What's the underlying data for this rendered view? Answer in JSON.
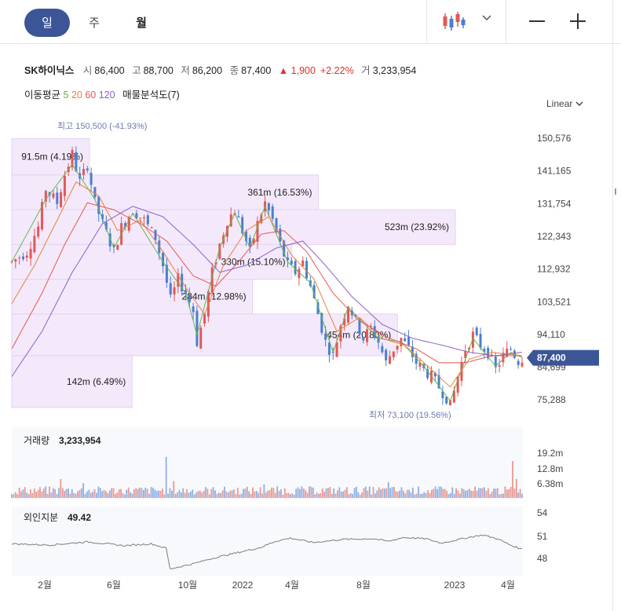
{
  "tabs": [
    {
      "label": "일",
      "active": true
    },
    {
      "label": "주",
      "active": false
    },
    {
      "label": "월",
      "active": false
    }
  ],
  "stock": {
    "name": "SK하이닉스",
    "open_label": "시",
    "open": "86,400",
    "high_label": "고",
    "high": "88,700",
    "low_label": "저",
    "low": "86,200",
    "close_label": "종",
    "close": "87,400",
    "change": "▲ 1,900",
    "change_pct": "+2.22%",
    "volume_label": "거",
    "volume": "3,233,954"
  },
  "ma_legend": {
    "label": "이동평균",
    "p5": "5",
    "p20": "20",
    "p60": "60",
    "p120": "120",
    "vp_label": "매물분석도(7)"
  },
  "scale_mode": "Linear",
  "colors": {
    "up": "#e45757",
    "down": "#4a7fd0",
    "ma5": "#64b54e",
    "ma20": "#e8803b",
    "ma60": "#e45757",
    "ma120": "#8b5fc7",
    "accent": "#3c5597",
    "vp": "#f3e9fb"
  },
  "chart_data": [
    {
      "type": "candlestick",
      "title": "",
      "price_axis_ticks": [
        150576,
        141165,
        131754,
        122343,
        112932,
        103521,
        94110,
        84699,
        75288
      ],
      "ylim": [
        71500,
        156000
      ],
      "x_tick_labels": [
        "2월",
        "6월",
        "10월",
        "2022",
        "4월",
        "8월",
        "2023",
        "4월"
      ],
      "current_price_label": "87,400",
      "high_annotation": "최고 150,500 (-41.93%)",
      "low_annotation": "최저 73,100 (19.56%)",
      "price_path": [
        [
          0,
          115000
        ],
        [
          4,
          118000
        ],
        [
          7,
          125000
        ],
        [
          9,
          136000
        ],
        [
          12,
          132000
        ],
        [
          14,
          140000
        ],
        [
          16,
          146000
        ],
        [
          18,
          138000
        ],
        [
          20,
          143000
        ],
        [
          22,
          132000
        ],
        [
          24,
          126000
        ],
        [
          27,
          118000
        ],
        [
          29,
          125000
        ],
        [
          32,
          130000
        ],
        [
          35,
          127000
        ],
        [
          38,
          122000
        ],
        [
          40,
          114000
        ],
        [
          42,
          104000
        ],
        [
          44,
          110000
        ],
        [
          46,
          106000
        ],
        [
          48,
          101000
        ],
        [
          49,
          92000
        ],
        [
          51,
          100000
        ],
        [
          53,
          112000
        ],
        [
          55,
          120000
        ],
        [
          57,
          127000
        ],
        [
          59,
          130000
        ],
        [
          61,
          124000
        ],
        [
          63,
          118000
        ],
        [
          65,
          126000
        ],
        [
          67,
          132000
        ],
        [
          69,
          127000
        ],
        [
          71,
          120000
        ],
        [
          73,
          114000
        ],
        [
          75,
          112000
        ],
        [
          77,
          115000
        ],
        [
          79,
          108000
        ],
        [
          81,
          100000
        ],
        [
          83,
          92000
        ],
        [
          85,
          88000
        ],
        [
          87,
          97000
        ],
        [
          89,
          103000
        ],
        [
          91,
          98000
        ],
        [
          93,
          93000
        ],
        [
          95,
          96000
        ],
        [
          97,
          92000
        ],
        [
          99,
          86000
        ],
        [
          101,
          90000
        ],
        [
          103,
          93000
        ],
        [
          105,
          90000
        ],
        [
          107,
          86000
        ],
        [
          109,
          84000
        ],
        [
          111,
          82000
        ],
        [
          113,
          79000
        ],
        [
          115,
          76000
        ],
        [
          116,
          73500
        ],
        [
          118,
          82000
        ],
        [
          120,
          90000
        ],
        [
          122,
          94000
        ],
        [
          124,
          91000
        ],
        [
          126,
          89000
        ],
        [
          128,
          84000
        ],
        [
          130,
          88000
        ],
        [
          132,
          90000
        ],
        [
          134,
          86500
        ],
        [
          135,
          87400
        ]
      ],
      "ma_series": [
        {
          "name": "5",
          "path": [
            [
              0,
              115000
            ],
            [
              9,
              133000
            ],
            [
              16,
              143000
            ],
            [
              22,
              133000
            ],
            [
              27,
              119000
            ],
            [
              32,
              129000
            ],
            [
              40,
              115000
            ],
            [
              46,
              106000
            ],
            [
              49,
              94000
            ],
            [
              55,
              119000
            ],
            [
              59,
              129000
            ],
            [
              63,
              119000
            ],
            [
              67,
              131000
            ],
            [
              73,
              115000
            ],
            [
              79,
              109000
            ],
            [
              85,
              89000
            ],
            [
              89,
              102000
            ],
            [
              97,
              93000
            ],
            [
              103,
              92000
            ],
            [
              109,
              85000
            ],
            [
              116,
              75000
            ],
            [
              122,
              93000
            ],
            [
              128,
              85000
            ],
            [
              132,
              89000
            ],
            [
              135,
              87500
            ]
          ]
        },
        {
          "name": "20",
          "path": [
            [
              0,
              103000
            ],
            [
              6,
              114000
            ],
            [
              12,
              127000
            ],
            [
              17,
              138000
            ],
            [
              23,
              134000
            ],
            [
              28,
              124000
            ],
            [
              34,
              127000
            ],
            [
              40,
              118000
            ],
            [
              47,
              106000
            ],
            [
              51,
              100000
            ],
            [
              56,
              114000
            ],
            [
              62,
              124000
            ],
            [
              68,
              128000
            ],
            [
              74,
              117000
            ],
            [
              80,
              110000
            ],
            [
              86,
              95000
            ],
            [
              92,
              99000
            ],
            [
              98,
              93000
            ],
            [
              104,
              91000
            ],
            [
              110,
              85000
            ],
            [
              116,
              79000
            ],
            [
              121,
              87000
            ],
            [
              127,
              89000
            ],
            [
              135,
              88000
            ]
          ]
        },
        {
          "name": "60",
          "path": [
            [
              0,
              90000
            ],
            [
              8,
              106000
            ],
            [
              14,
              120000
            ],
            [
              20,
              132000
            ],
            [
              27,
              130000
            ],
            [
              34,
              126000
            ],
            [
              41,
              121000
            ],
            [
              48,
              111000
            ],
            [
              54,
              108000
            ],
            [
              60,
              115000
            ],
            [
              66,
              123000
            ],
            [
              72,
              124000
            ],
            [
              78,
              118000
            ],
            [
              85,
              106000
            ],
            [
              92,
              98000
            ],
            [
              100,
              93000
            ],
            [
              107,
              90000
            ],
            [
              113,
              86000
            ],
            [
              120,
              86000
            ],
            [
              127,
              88000
            ],
            [
              135,
              88000
            ]
          ]
        },
        {
          "name": "120",
          "path": [
            [
              0,
              82000
            ],
            [
              8,
              95000
            ],
            [
              16,
              112000
            ],
            [
              24,
              126000
            ],
            [
              32,
              131000
            ],
            [
              40,
              128000
            ],
            [
              48,
              120000
            ],
            [
              55,
              112000
            ],
            [
              62,
              114000
            ],
            [
              70,
              119000
            ],
            [
              77,
              121000
            ],
            [
              83,
              114000
            ],
            [
              90,
              105000
            ],
            [
              98,
              97000
            ],
            [
              106,
              93000
            ],
            [
              114,
              91000
            ],
            [
              121,
              89000
            ],
            [
              128,
              88000
            ],
            [
              135,
              89000
            ]
          ]
        }
      ],
      "volume_profile": [
        {
          "label": "91.5m (4.19%)",
          "price_range": [
            140000,
            150500
          ],
          "pct": 4.19
        },
        {
          "label": "361m (16.53%)",
          "price_range": [
            130000,
            140000
          ],
          "pct": 16.53
        },
        {
          "label": "523m (23.92%)",
          "price_range": [
            120000,
            130000
          ],
          "pct": 23.92
        },
        {
          "label": "330m (15.10%)",
          "price_range": [
            110000,
            120000
          ],
          "pct": 15.1
        },
        {
          "label": "284m (12.98%)",
          "price_range": [
            100000,
            110000
          ],
          "pct": 12.98
        },
        {
          "label": "454m (20.80%)",
          "price_range": [
            88000,
            100000
          ],
          "pct": 20.8
        },
        {
          "label": "142m (6.49%)",
          "price_range": [
            73100,
            88000
          ],
          "pct": 6.49
        }
      ]
    },
    {
      "type": "bar",
      "title": "거래량",
      "value_label": "3,233,954",
      "y_tick_labels": [
        "19.2m",
        "12.8m",
        "6.38m"
      ],
      "ylim": [
        0,
        22000000
      ],
      "spikes": [
        [
          13,
          9000000
        ],
        [
          19,
          7000000
        ],
        [
          41,
          19500000
        ],
        [
          43,
          8000000
        ],
        [
          67,
          6500000
        ],
        [
          100,
          7500000
        ],
        [
          133,
          17500000
        ],
        [
          134,
          9000000
        ]
      ],
      "baseline_range": [
        1500000,
        5500000
      ]
    },
    {
      "type": "line",
      "title": "외인지분",
      "value_label": "49.42",
      "y_tick_labels": [
        "54",
        "51",
        "48"
      ],
      "ylim": [
        45.5,
        55.5
      ],
      "path": [
        [
          0,
          50.2
        ],
        [
          10,
          50.0
        ],
        [
          20,
          50.5
        ],
        [
          30,
          49.9
        ],
        [
          37,
          50.2
        ],
        [
          41,
          49.5
        ],
        [
          42,
          46.2
        ],
        [
          48,
          47.0
        ],
        [
          54,
          48.0
        ],
        [
          60,
          48.8
        ],
        [
          66,
          49.6
        ],
        [
          70,
          50.6
        ],
        [
          74,
          51.1
        ],
        [
          80,
          50.4
        ],
        [
          88,
          50.9
        ],
        [
          96,
          51.0
        ],
        [
          100,
          50.6
        ],
        [
          104,
          51.2
        ],
        [
          110,
          51.0
        ],
        [
          114,
          50.3
        ],
        [
          118,
          50.8
        ],
        [
          122,
          51.3
        ],
        [
          125,
          51.6
        ],
        [
          129,
          51.0
        ],
        [
          132,
          50.1
        ],
        [
          135,
          49.4
        ]
      ]
    }
  ]
}
